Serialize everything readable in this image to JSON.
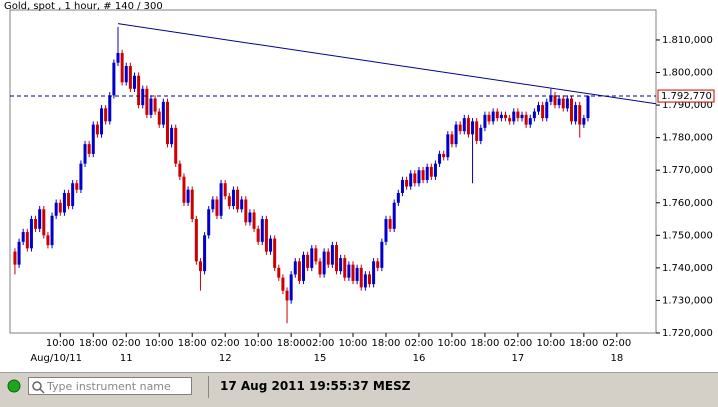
{
  "chart_data": {
    "type": "candlestick",
    "title": "Gold, spot , 1 hour, # 140 / 300",
    "up_color": "#0000cc",
    "down_color": "#cc0000",
    "ylim": [
      1720,
      1819.2
    ],
    "xlim": [
      -1.2,
      155.5
    ],
    "yticks": [
      {
        "value": 1720,
        "label": "1.720,000"
      },
      {
        "value": 1730,
        "label": "1.730,000"
      },
      {
        "value": 1740,
        "label": "1.740,000"
      },
      {
        "value": 1750,
        "label": "1.750,000"
      },
      {
        "value": 1760,
        "label": "1.760,000"
      },
      {
        "value": 1770,
        "label": "1.770,000"
      },
      {
        "value": 1780,
        "label": "1.780,000"
      },
      {
        "value": 1790,
        "label": "1.790,000"
      },
      {
        "value": 1800,
        "label": "1.800,000"
      },
      {
        "value": 1810,
        "label": "1.810,000"
      }
    ],
    "xticks": [
      {
        "value": 11,
        "label": "10:00"
      },
      {
        "value": 19,
        "label": "18:00"
      },
      {
        "value": 27,
        "label": "02:00"
      },
      {
        "value": 35,
        "label": "10:00"
      },
      {
        "value": 43,
        "label": "18:00"
      },
      {
        "value": 51,
        "label": "02:00"
      },
      {
        "value": 59,
        "label": "10:00"
      },
      {
        "value": 67,
        "label": "18:00"
      },
      {
        "value": 74,
        "label": "02:00"
      },
      {
        "value": 82,
        "label": "10:00"
      },
      {
        "value": 90,
        "label": "18:00"
      },
      {
        "value": 98,
        "label": "02:00"
      },
      {
        "value": 106,
        "label": "10:00"
      },
      {
        "value": 114,
        "label": "18:00"
      },
      {
        "value": 122,
        "label": "02:00"
      },
      {
        "value": 130,
        "label": "10:00"
      },
      {
        "value": 138,
        "label": "18:00"
      },
      {
        "value": 146,
        "label": "02:00"
      }
    ],
    "xdates": [
      {
        "value": 10,
        "label": "Aug/10/11"
      },
      {
        "value": 27,
        "label": "11"
      },
      {
        "value": 51,
        "label": "12"
      },
      {
        "value": 74,
        "label": "15"
      },
      {
        "value": 98,
        "label": "16"
      },
      {
        "value": 122,
        "label": "17"
      },
      {
        "value": 146,
        "label": "18"
      }
    ],
    "current_price": {
      "value": 1792.77,
      "label": "1.792,770"
    },
    "trendline": {
      "x": [
        25,
        155.5
      ],
      "y": [
        1815,
        1790.4
      ]
    },
    "ohlc": [
      [
        1745,
        1746,
        1738,
        1741
      ],
      [
        1741,
        1749,
        1740,
        1748
      ],
      [
        1748,
        1752,
        1747,
        1751
      ],
      [
        1751,
        1752,
        1745,
        1746
      ],
      [
        1746,
        1756,
        1745,
        1755
      ],
      [
        1755,
        1756,
        1751,
        1752
      ],
      [
        1752,
        1759,
        1751,
        1758
      ],
      [
        1758,
        1759,
        1749,
        1750
      ],
      [
        1750,
        1751,
        1746,
        1747
      ],
      [
        1747,
        1757,
        1746,
        1756
      ],
      [
        1756,
        1761,
        1755,
        1760
      ],
      [
        1760,
        1761,
        1756,
        1757
      ],
      [
        1757,
        1764,
        1756,
        1763
      ],
      [
        1763,
        1764,
        1758,
        1759
      ],
      [
        1759,
        1767,
        1758,
        1766
      ],
      [
        1766,
        1767,
        1763,
        1764
      ],
      [
        1764,
        1773,
        1763,
        1772
      ],
      [
        1772,
        1779,
        1771,
        1778
      ],
      [
        1778,
        1779,
        1774,
        1775
      ],
      [
        1775,
        1785,
        1774,
        1784
      ],
      [
        1784,
        1785,
        1780,
        1781
      ],
      [
        1781,
        1790,
        1780,
        1789
      ],
      [
        1789,
        1790,
        1784,
        1785
      ],
      [
        1785,
        1794,
        1784,
        1793
      ],
      [
        1793,
        1804,
        1792,
        1803
      ],
      [
        1803,
        1814,
        1802,
        1806
      ],
      [
        1806,
        1807,
        1796,
        1797
      ],
      [
        1797,
        1803,
        1796,
        1802
      ],
      [
        1802,
        1803,
        1794,
        1795
      ],
      [
        1795,
        1800,
        1794,
        1799
      ],
      [
        1799,
        1800,
        1789,
        1790
      ],
      [
        1790,
        1796,
        1789,
        1795
      ],
      [
        1795,
        1796,
        1786,
        1787
      ],
      [
        1787,
        1793,
        1786,
        1792
      ],
      [
        1792,
        1793,
        1787,
        1788
      ],
      [
        1788,
        1789,
        1783,
        1784
      ],
      [
        1784,
        1792,
        1783,
        1791
      ],
      [
        1791,
        1792,
        1777,
        1778
      ],
      [
        1778,
        1784,
        1777,
        1783
      ],
      [
        1783,
        1784,
        1771,
        1772
      ],
      [
        1772,
        1773,
        1767,
        1768
      ],
      [
        1768,
        1769,
        1759,
        1760
      ],
      [
        1760,
        1765,
        1759,
        1764
      ],
      [
        1764,
        1765,
        1754,
        1755
      ],
      [
        1755,
        1756,
        1741,
        1742
      ],
      [
        1742,
        1743,
        1733,
        1739
      ],
      [
        1739,
        1751,
        1738,
        1750
      ],
      [
        1750,
        1759,
        1749,
        1758
      ],
      [
        1758,
        1762,
        1757,
        1761
      ],
      [
        1761,
        1762,
        1755,
        1756
      ],
      [
        1756,
        1767,
        1755,
        1766
      ],
      [
        1766,
        1767,
        1761,
        1762
      ],
      [
        1762,
        1763,
        1758,
        1759
      ],
      [
        1759,
        1765,
        1758,
        1764
      ],
      [
        1764,
        1765,
        1757,
        1758
      ],
      [
        1758,
        1762,
        1757,
        1761
      ],
      [
        1761,
        1762,
        1753,
        1754
      ],
      [
        1754,
        1758,
        1753,
        1757
      ],
      [
        1757,
        1758,
        1751,
        1752
      ],
      [
        1752,
        1753,
        1747,
        1748
      ],
      [
        1748,
        1756,
        1747,
        1755
      ],
      [
        1755,
        1756,
        1744,
        1745
      ],
      [
        1745,
        1750,
        1744,
        1749
      ],
      [
        1749,
        1750,
        1739,
        1740
      ],
      [
        1740,
        1741,
        1736,
        1737
      ],
      [
        1737,
        1738,
        1732,
        1733
      ],
      [
        1733,
        1734,
        1723,
        1730
      ],
      [
        1730,
        1739,
        1729,
        1738
      ],
      [
        1738,
        1743,
        1737,
        1742
      ],
      [
        1742,
        1743,
        1735,
        1736
      ],
      [
        1736,
        1745,
        1735,
        1744
      ],
      [
        1744,
        1745,
        1739,
        1740
      ],
      [
        1740,
        1747,
        1739,
        1746
      ],
      [
        1746,
        1747,
        1741,
        1742
      ],
      [
        1742,
        1743,
        1737,
        1738
      ],
      [
        1738,
        1746,
        1737,
        1745
      ],
      [
        1745,
        1746,
        1740,
        1741
      ],
      [
        1741,
        1748,
        1740,
        1747
      ],
      [
        1747,
        1748,
        1738,
        1739
      ],
      [
        1739,
        1744,
        1738,
        1743
      ],
      [
        1743,
        1744,
        1736,
        1737
      ],
      [
        1737,
        1742,
        1736,
        1741
      ],
      [
        1741,
        1742,
        1735,
        1736
      ],
      [
        1736,
        1741,
        1735,
        1740
      ],
      [
        1740,
        1741,
        1733,
        1734
      ],
      [
        1734,
        1739,
        1733,
        1738
      ],
      [
        1738,
        1739,
        1734,
        1735
      ],
      [
        1735,
        1743,
        1734,
        1742
      ],
      [
        1742,
        1743,
        1739,
        1740
      ],
      [
        1740,
        1749,
        1739,
        1748
      ],
      [
        1748,
        1756,
        1747,
        1755
      ],
      [
        1755,
        1756,
        1751,
        1752
      ],
      [
        1752,
        1761,
        1751,
        1760
      ],
      [
        1760,
        1764,
        1759,
        1763
      ],
      [
        1763,
        1768,
        1762,
        1767
      ],
      [
        1767,
        1768,
        1764,
        1765
      ],
      [
        1765,
        1770,
        1764,
        1769
      ],
      [
        1769,
        1770,
        1765,
        1766
      ],
      [
        1766,
        1771,
        1765,
        1770
      ],
      [
        1770,
        1771,
        1766,
        1767
      ],
      [
        1767,
        1772,
        1766,
        1771
      ],
      [
        1771,
        1772,
        1767,
        1768
      ],
      [
        1768,
        1773,
        1767,
        1772
      ],
      [
        1772,
        1776,
        1771,
        1775
      ],
      [
        1775,
        1776,
        1773,
        1774
      ],
      [
        1774,
        1782,
        1773,
        1781
      ],
      [
        1781,
        1782,
        1777,
        1778
      ],
      [
        1778,
        1785,
        1777,
        1784
      ],
      [
        1784,
        1785,
        1781,
        1782
      ],
      [
        1782,
        1787,
        1781,
        1786
      ],
      [
        1786,
        1787,
        1780,
        1781
      ],
      [
        1781,
        1786,
        1766,
        1785
      ],
      [
        1785,
        1786,
        1778,
        1779
      ],
      [
        1779,
        1784,
        1778,
        1783
      ],
      [
        1783,
        1788,
        1782,
        1787
      ],
      [
        1787,
        1788,
        1784,
        1785
      ],
      [
        1785,
        1789,
        1784,
        1788
      ],
      [
        1788,
        1789,
        1785,
        1786
      ],
      [
        1786,
        1788,
        1785,
        1787
      ],
      [
        1787,
        1788,
        1785,
        1786
      ],
      [
        1786,
        1787,
        1784,
        1785
      ],
      [
        1785,
        1789,
        1784,
        1788
      ],
      [
        1788,
        1789,
        1785,
        1786
      ],
      [
        1786,
        1788,
        1785,
        1787
      ],
      [
        1787,
        1788,
        1783,
        1784
      ],
      [
        1784,
        1787,
        1783,
        1786
      ],
      [
        1786,
        1789,
        1785,
        1788
      ],
      [
        1788,
        1791,
        1787,
        1790
      ],
      [
        1790,
        1791,
        1785,
        1786
      ],
      [
        1786,
        1792,
        1785,
        1791
      ],
      [
        1791,
        1795,
        1790,
        1793
      ],
      [
        1793,
        1794,
        1789,
        1790
      ],
      [
        1790,
        1793,
        1789,
        1792
      ],
      [
        1792,
        1793,
        1788,
        1789
      ],
      [
        1789,
        1793,
        1788,
        1792
      ],
      [
        1792,
        1793,
        1784,
        1785
      ],
      [
        1785,
        1791,
        1784,
        1790
      ],
      [
        1790,
        1791,
        1780,
        1784
      ],
      [
        1784,
        1787,
        1783,
        1786
      ],
      [
        1786,
        1793,
        1785,
        1792.77
      ]
    ]
  },
  "status_bar": {
    "input_placeholder": "Type instrument name",
    "timestamp": "17 Aug 2011 19:55:37 MESZ"
  }
}
